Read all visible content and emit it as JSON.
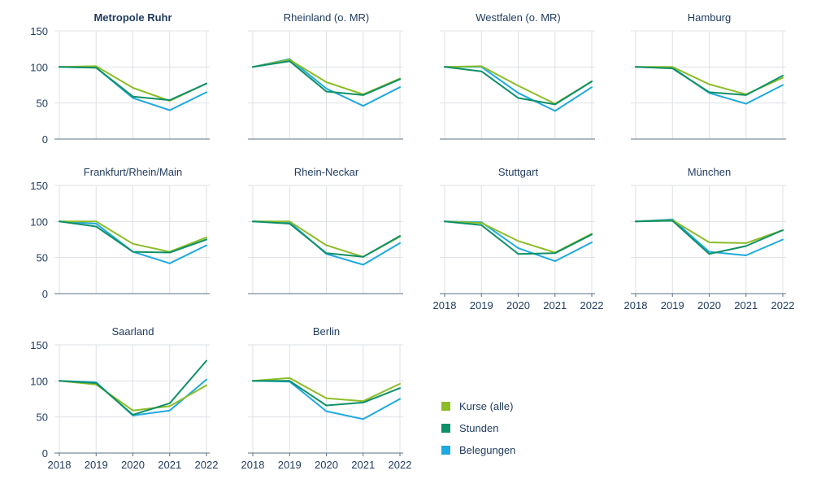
{
  "chart_data": {
    "type": "line",
    "x": [
      2018,
      2019,
      2020,
      2021,
      2022
    ],
    "ylim": [
      0,
      150
    ],
    "yticks": [
      0,
      50,
      100,
      150
    ],
    "grid": true,
    "legend_position": "bottom-right",
    "series_meta": [
      {
        "key": "kurse",
        "name": "Kurse (alle)",
        "color": "#8cbc26"
      },
      {
        "key": "stunden",
        "name": "Stunden",
        "color": "#0e9068"
      },
      {
        "key": "belegungen",
        "name": "Belegungen",
        "color": "#1ea9e0"
      }
    ],
    "panels": [
      {
        "title": "Metropole Ruhr",
        "highlight": true,
        "show_xlabels": false,
        "kurse": [
          100,
          101,
          71,
          53,
          77
        ],
        "stunden": [
          100,
          99,
          59,
          54,
          77
        ],
        "belegungen": [
          100,
          99,
          57,
          40,
          65
        ]
      },
      {
        "title": "Rheinland (o. MR)",
        "highlight": false,
        "show_xlabels": false,
        "kurse": [
          100,
          110,
          79,
          62,
          84
        ],
        "stunden": [
          100,
          108,
          66,
          61,
          83
        ],
        "belegungen": [
          100,
          111,
          70,
          46,
          72
        ]
      },
      {
        "title": "Westfalen (o. MR)",
        "highlight": false,
        "show_xlabels": false,
        "kurse": [
          100,
          101,
          74,
          49,
          80
        ],
        "stunden": [
          100,
          94,
          57,
          48,
          80
        ],
        "belegungen": [
          100,
          100,
          64,
          39,
          72
        ]
      },
      {
        "title": "Hamburg",
        "highlight": false,
        "show_xlabels": false,
        "kurse": [
          100,
          100,
          76,
          62,
          85
        ],
        "stunden": [
          100,
          98,
          65,
          61,
          88
        ],
        "belegungen": [
          100,
          99,
          64,
          49,
          75
        ]
      },
      {
        "title": "Frankfurt/Rhein/Main",
        "highlight": false,
        "show_xlabels": false,
        "kurse": [
          100,
          100,
          69,
          58,
          78
        ],
        "stunden": [
          100,
          93,
          58,
          57,
          75
        ],
        "belegungen": [
          100,
          97,
          58,
          42,
          67
        ]
      },
      {
        "title": "Rhein-Neckar",
        "highlight": false,
        "show_xlabels": false,
        "kurse": [
          100,
          100,
          67,
          51,
          79
        ],
        "stunden": [
          100,
          97,
          56,
          51,
          80
        ],
        "belegungen": [
          100,
          99,
          55,
          40,
          70
        ]
      },
      {
        "title": "Stuttgart",
        "highlight": false,
        "show_xlabels": true,
        "kurse": [
          100,
          98,
          73,
          57,
          83
        ],
        "stunden": [
          100,
          95,
          55,
          56,
          82
        ],
        "belegungen": [
          100,
          99,
          63,
          45,
          71
        ]
      },
      {
        "title": "München",
        "highlight": false,
        "show_xlabels": true,
        "kurse": [
          100,
          102,
          71,
          70,
          88
        ],
        "stunden": [
          100,
          101,
          55,
          66,
          88
        ],
        "belegungen": [
          100,
          103,
          58,
          53,
          75
        ]
      },
      {
        "title": "Saarland",
        "highlight": false,
        "show_xlabels": true,
        "kurse": [
          100,
          95,
          59,
          65,
          94
        ],
        "stunden": [
          100,
          97,
          53,
          69,
          128
        ],
        "belegungen": [
          100,
          98,
          52,
          59,
          102
        ]
      },
      {
        "title": "Berlin",
        "highlight": false,
        "show_xlabels": true,
        "kurse": [
          100,
          104,
          76,
          72,
          96
        ],
        "stunden": [
          100,
          100,
          66,
          70,
          90
        ],
        "belegungen": [
          100,
          99,
          58,
          47,
          75
        ]
      }
    ]
  }
}
